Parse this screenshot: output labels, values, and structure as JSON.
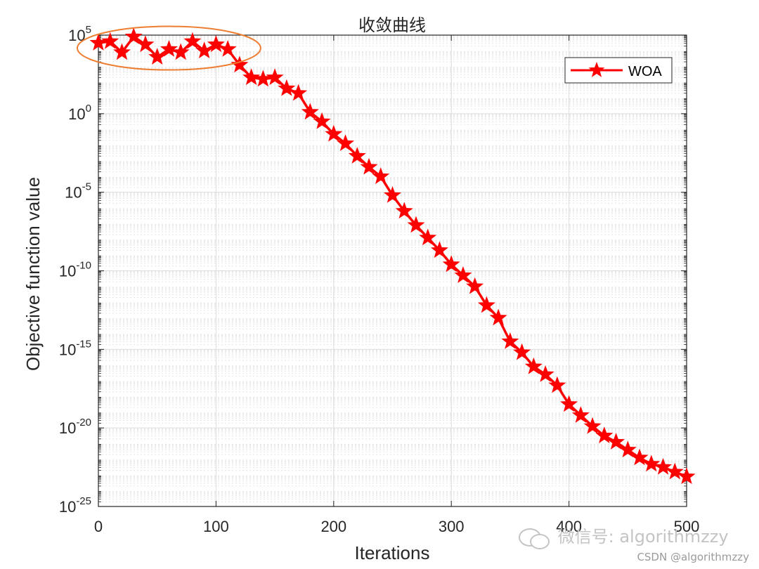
{
  "chart_data": {
    "type": "line",
    "title": "收敛曲线",
    "xlabel": "Iterations",
    "ylabel": "Objective function value",
    "xlim": [
      0,
      500
    ],
    "ylim_exponent": [
      -25,
      5
    ],
    "yscale": "log",
    "grid": true,
    "minor_grid": true,
    "legend_position": "top-right",
    "x_ticks": [
      "0",
      "100",
      "200",
      "300",
      "400",
      "500"
    ],
    "y_ticks": [
      {
        "base": "10",
        "exp": "-25"
      },
      {
        "base": "10",
        "exp": "-20"
      },
      {
        "base": "10",
        "exp": "-15"
      },
      {
        "base": "10",
        "exp": "-10"
      },
      {
        "base": "10",
        "exp": "-5"
      },
      {
        "base": "10",
        "exp": "0"
      },
      {
        "base": "10",
        "exp": "5"
      }
    ],
    "series": [
      {
        "name": "WOA",
        "color": "#ff0000",
        "marker": "star",
        "x": [
          0,
          10,
          20,
          30,
          40,
          50,
          60,
          70,
          80,
          90,
          100,
          110,
          120,
          130,
          140,
          150,
          160,
          170,
          180,
          190,
          200,
          210,
          220,
          230,
          240,
          250,
          260,
          270,
          280,
          290,
          300,
          310,
          320,
          330,
          340,
          350,
          360,
          370,
          380,
          390,
          400,
          410,
          420,
          430,
          440,
          450,
          460,
          470,
          480,
          490,
          500
        ],
        "log10_y": [
          4.5,
          4.6,
          3.9,
          4.9,
          4.4,
          3.6,
          4.1,
          3.9,
          4.6,
          4.0,
          4.4,
          4.1,
          3.1,
          2.3,
          2.2,
          2.3,
          1.6,
          1.3,
          0.1,
          -0.5,
          -1.3,
          -1.9,
          -2.7,
          -3.4,
          -4.0,
          -5.2,
          -6.2,
          -7.1,
          -7.9,
          -8.7,
          -9.6,
          -10.3,
          -11.0,
          -12.2,
          -13.0,
          -14.5,
          -15.2,
          -16.1,
          -16.6,
          -17.3,
          -18.5,
          -19.2,
          -19.9,
          -20.5,
          -20.9,
          -21.4,
          -21.9,
          -22.3,
          -22.5,
          -22.8,
          -23.1
        ]
      }
    ],
    "annotations": [
      {
        "shape": "ellipse",
        "color": "#ed7d31",
        "x_range": [
          0,
          120
        ],
        "log10_y_range": [
          3.5,
          5.2
        ]
      }
    ]
  },
  "watermark": {
    "wechat": "微信号: algorithmzzy",
    "csdn": "CSDN @algorithmzzy"
  }
}
